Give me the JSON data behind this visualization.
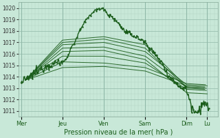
{
  "bg_color": "#c8e8d8",
  "grid_minor_color": "#b0d4c4",
  "grid_major_color": "#90b8a8",
  "line_color": "#1a5c1a",
  "xlabel": "Pression niveau de la mer( hPa )",
  "ylim": [
    1010.5,
    1020.5
  ],
  "yticks": [
    1011,
    1012,
    1013,
    1014,
    1015,
    1016,
    1017,
    1018,
    1019,
    1020
  ],
  "xtick_labels": [
    "Mer",
    "Jeu",
    "Ven",
    "Sam",
    "Dim",
    "Lu"
  ],
  "xtick_positions": [
    0,
    48,
    96,
    144,
    192,
    216
  ],
  "xlim": [
    -3,
    228
  ]
}
